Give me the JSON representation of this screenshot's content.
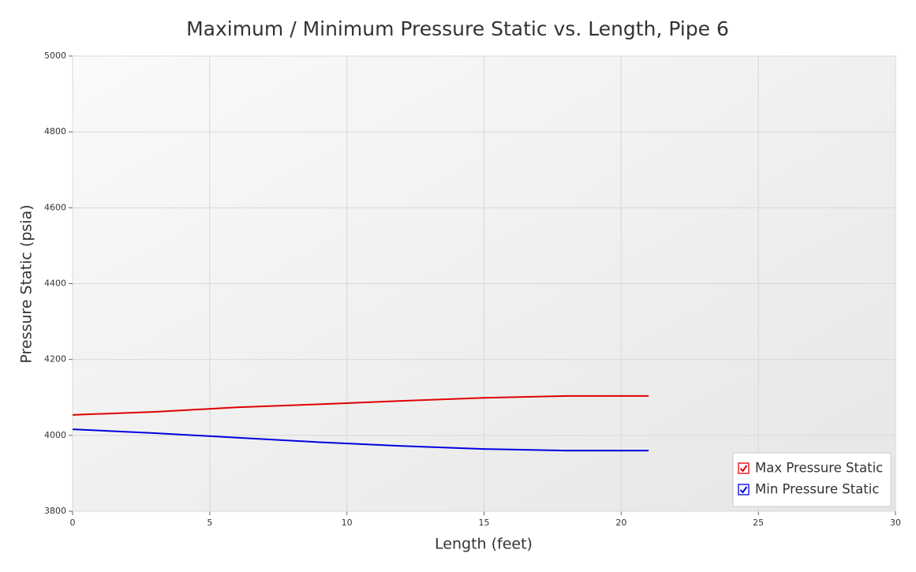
{
  "chart_data": {
    "type": "line",
    "title": "Maximum / Minimum Pressure Static vs. Length, Pipe 6",
    "x_label": "Length (feet)",
    "y_label": "Pressure Static (psia)",
    "x": [
      0,
      3,
      6,
      9,
      12,
      15,
      18,
      21
    ],
    "series": [
      {
        "name": "Max Pressure Static",
        "color": "#e00000",
        "values": [
          4054,
          4062,
          4074,
          4082,
          4091,
          4099,
          4104,
          4104
        ]
      },
      {
        "name": "Min Pressure Static",
        "color": "#0000e0",
        "values": [
          4016,
          4006,
          3994,
          3982,
          3972,
          3964,
          3960,
          3960
        ]
      }
    ],
    "xlim": [
      0,
      30
    ],
    "xticks": [
      0,
      5,
      10,
      15,
      20,
      25,
      30
    ],
    "ylim": [
      3800,
      5000
    ],
    "yticks": [
      3800,
      4000,
      4200,
      4400,
      4600,
      4800,
      5000
    ],
    "grid": true,
    "legend": "lower right"
  }
}
